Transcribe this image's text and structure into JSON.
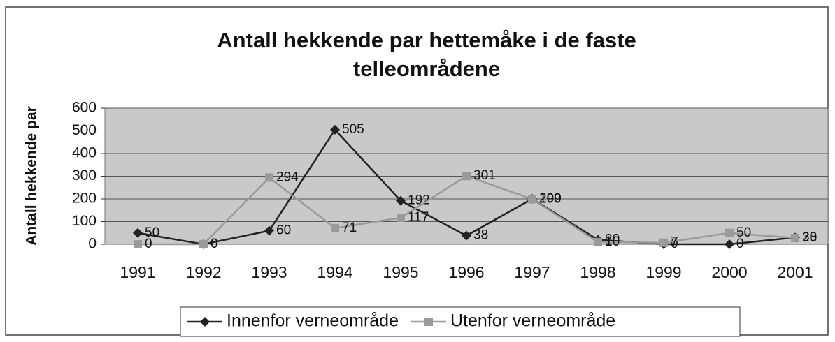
{
  "chart_data": {
    "type": "line",
    "title": [
      "Antall hekkende par hettemåke i de faste",
      "telleområdene"
    ],
    "y_label": "Antall hekkende par",
    "categories": [
      "1991",
      "1992",
      "1993",
      "1994",
      "1995",
      "1996",
      "1997",
      "1998",
      "1999",
      "2000",
      "2001"
    ],
    "series": [
      {
        "name": "Innenfor verneområde",
        "color": "#222222",
        "marker": "diamond",
        "values": [
          50,
          0,
          60,
          505,
          192,
          38,
          200,
          20,
          0,
          0,
          30
        ]
      },
      {
        "name": "Utenfor verneområde",
        "color": "#9a9a9a",
        "marker": "square",
        "values": [
          0,
          0,
          294,
          71,
          117,
          301,
          199,
          10,
          7,
          50,
          28
        ]
      }
    ],
    "ylim": [
      0,
      600
    ],
    "yticks": [
      0,
      100,
      200,
      300,
      400,
      500,
      600
    ],
    "grid": true,
    "legend": "bottom",
    "data_labels": true
  }
}
